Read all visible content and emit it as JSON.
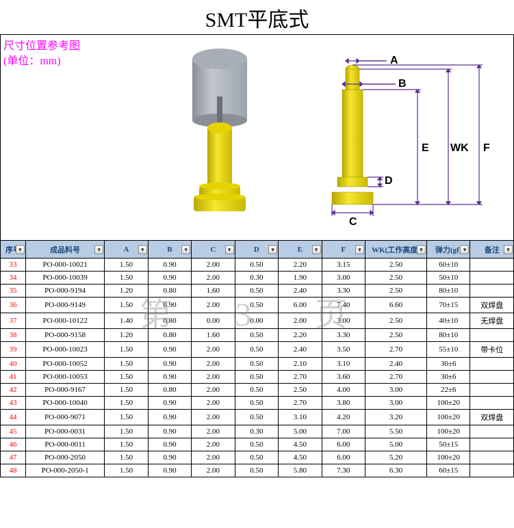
{
  "title": "SMT平底式",
  "ref_label_line1": "尺寸位置参考图",
  "ref_label_line2": "(单位：mm)",
  "watermark": "第 3 页",
  "dim_labels": {
    "A": "A",
    "B": "B",
    "C": "C",
    "D": "D",
    "E": "E",
    "F": "F",
    "WK": "WK"
  },
  "columns": [
    "序号",
    "成品料号",
    "A",
    "B",
    "C",
    "D",
    "E",
    "F",
    "WK(工作高度)",
    "弹力(gf)",
    "备注"
  ],
  "rows": [
    {
      "seq": "33",
      "part": "PO-000-10021",
      "A": "1.50",
      "B": "0.90",
      "C": "2.00",
      "D": "0.50",
      "E": "2.20",
      "F": "3.15",
      "WK": "2.50",
      "force": "60±10",
      "note": ""
    },
    {
      "seq": "34",
      "part": "PO-000-10039",
      "A": "1.50",
      "B": "0.90",
      "C": "2.00",
      "D": "0.30",
      "E": "1.90",
      "F": "3.00",
      "WK": "2.50",
      "force": "50±10",
      "note": ""
    },
    {
      "seq": "35",
      "part": "PO-000-9194",
      "A": "1.20",
      "B": "0.80",
      "C": "1.60",
      "D": "0.50",
      "E": "2.40",
      "F": "3.30",
      "WK": "2.50",
      "force": "80±10",
      "note": ""
    },
    {
      "seq": "36",
      "part": "PO-000-9149",
      "A": "1.50",
      "B": "0.90",
      "C": "2.00",
      "D": "0.50",
      "E": "6.00",
      "F": "7.40",
      "WK": "6.60",
      "force": "70±15",
      "note": "双焊盘"
    },
    {
      "seq": "37",
      "part": "PO-000-10122",
      "A": "1.40",
      "B": "0.80",
      "C": "0.00",
      "D": "0.00",
      "E": "2.00",
      "F": "3.00",
      "WK": "2.50",
      "force": "40±10",
      "note": "无焊盘"
    },
    {
      "seq": "38",
      "part": "PO-000-9158",
      "A": "1.20",
      "B": "0.80",
      "C": "1.60",
      "D": "0.50",
      "E": "2.20",
      "F": "3.30",
      "WK": "2.50",
      "force": "80±10",
      "note": ""
    },
    {
      "seq": "39",
      "part": "PO-000-10023",
      "A": "1.50",
      "B": "0.90",
      "C": "2.00",
      "D": "0.50",
      "E": "2.40",
      "F": "3.50",
      "WK": "2.70",
      "force": "55±10",
      "note": "带卡位"
    },
    {
      "seq": "40",
      "part": "PO-000-10052",
      "A": "1.50",
      "B": "0.90",
      "C": "2.00",
      "D": "0.50",
      "E": "2.10",
      "F": "3.10",
      "WK": "2.40",
      "force": "30±6",
      "note": ""
    },
    {
      "seq": "41",
      "part": "PO-000-10053",
      "A": "1.50",
      "B": "0.90",
      "C": "2.00",
      "D": "0.50",
      "E": "2.70",
      "F": "3.60",
      "WK": "2.70",
      "force": "30±6",
      "note": ""
    },
    {
      "seq": "42",
      "part": "PO-000-9167",
      "A": "1.50",
      "B": "0.80",
      "C": "2.00",
      "D": "0.50",
      "E": "2.50",
      "F": "4.00",
      "WK": "3.00",
      "force": "22±6",
      "note": ""
    },
    {
      "seq": "43",
      "part": "PO-000-10040",
      "A": "1.50",
      "B": "0.90",
      "C": "2.00",
      "D": "0.50",
      "E": "2.70",
      "F": "3.80",
      "WK": "3.00",
      "force": "100±20",
      "note": ""
    },
    {
      "seq": "44",
      "part": "PO-000-9071",
      "A": "1.50",
      "B": "0.90",
      "C": "2.00",
      "D": "0.50",
      "E": "3.10",
      "F": "4.20",
      "WK": "3.20",
      "force": "100±20",
      "note": "双焊盘"
    },
    {
      "seq": "45",
      "part": "PO-000-0031",
      "A": "1.50",
      "B": "0.90",
      "C": "2.00",
      "D": "0.30",
      "E": "5.00",
      "F": "7.00",
      "WK": "5.50",
      "force": "100±20",
      "note": ""
    },
    {
      "seq": "46",
      "part": "PO-000-0011",
      "A": "1.50",
      "B": "0.90",
      "C": "2.00",
      "D": "0.50",
      "E": "4.50",
      "F": "6.00",
      "WK": "5.00",
      "force": "50±15",
      "note": ""
    },
    {
      "seq": "47",
      "part": "PO-000-2050",
      "A": "1.50",
      "B": "0.90",
      "C": "2.00",
      "D": "0.50",
      "E": "4.50",
      "F": "6.00",
      "WK": "5.20",
      "force": "100±20",
      "note": ""
    },
    {
      "seq": "48",
      "part": "PO-000-2050-1",
      "A": "1.50",
      "B": "0.90",
      "C": "2.00",
      "D": "0.50",
      "E": "5.80",
      "F": "7.30",
      "WK": "6.30",
      "force": "60±15",
      "note": ""
    }
  ],
  "colors": {
    "header_bg": "#b8cce4",
    "header_fg": "#1f497d",
    "seq_color": "#ff0000",
    "ref_color": "#ff00ff",
    "dim_line": "#5b2d90",
    "pin_yellow": "#e6d200"
  }
}
